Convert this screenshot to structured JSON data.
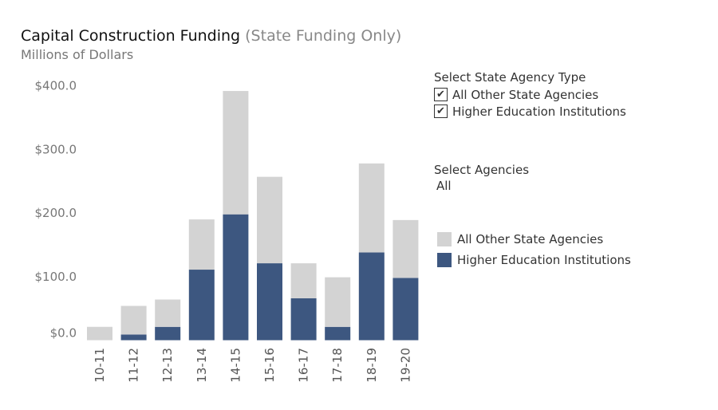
{
  "title": "Capital Construction Funding",
  "subtitle": "(State Funding Only)",
  "units": "Millions of Dollars",
  "filters": {
    "agency_type": {
      "label": "Select State Agency Type",
      "options": [
        {
          "label": "All Other State Agencies",
          "checked": true
        },
        {
          "label": "Higher Education Institutions",
          "checked": true
        }
      ]
    },
    "agencies": {
      "label": "Select Agencies",
      "value": "All"
    }
  },
  "chart_data": {
    "type": "bar",
    "stacked": true,
    "categories": [
      "10-11",
      "11-12",
      "12-13",
      "13-14",
      "14-15",
      "15-16",
      "16-17",
      "17-18",
      "18-19",
      "19-20"
    ],
    "series": [
      {
        "name": "Higher Education Institutions",
        "color": "#3d5780",
        "values": [
          0,
          9,
          21,
          111,
          198,
          121,
          66,
          21,
          138,
          98
        ]
      },
      {
        "name": "All Other State Agencies",
        "color": "#d3d3d3",
        "values": [
          21,
          45,
          43,
          79,
          194,
          136,
          55,
          78,
          140,
          91
        ]
      }
    ],
    "yticks": [
      "$0.0",
      "$100.0",
      "$200.0",
      "$300.0",
      "$400.0"
    ],
    "ytick_values": [
      0,
      100,
      200,
      300,
      400
    ],
    "ylim": [
      0,
      400
    ],
    "grid": false,
    "legend_placement": "right"
  }
}
